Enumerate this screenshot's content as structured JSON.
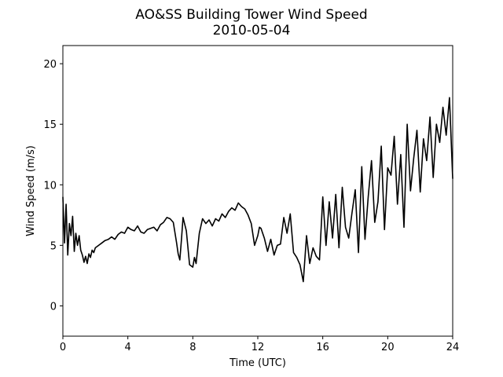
{
  "chart_data": {
    "type": "line",
    "title": "AO&SS Building Tower Wind Speed",
    "subtitle": "2010-05-04",
    "xlabel": "Time (UTC)",
    "ylabel": "Wind Speed (m/s)",
    "xlim": [
      0,
      24
    ],
    "ylim": [
      -2.5,
      21.5
    ],
    "xticks": [
      0,
      4,
      8,
      12,
      16,
      20,
      24
    ],
    "yticks": [
      0,
      5,
      10,
      15,
      20
    ],
    "grid": false,
    "line_color": "#000000",
    "series": [
      {
        "x": [
          0.0,
          0.1,
          0.2,
          0.3,
          0.4,
          0.5,
          0.6,
          0.7,
          0.8,
          0.9,
          1.0,
          1.1,
          1.2,
          1.3,
          1.4,
          1.5,
          1.6,
          1.7,
          1.8,
          1.9,
          2.0,
          2.2,
          2.4,
          2.6,
          2.8,
          3.0,
          3.2,
          3.4,
          3.6,
          3.8,
          4.0,
          4.2,
          4.4,
          4.6,
          4.8,
          5.0,
          5.2,
          5.4,
          5.6,
          5.8,
          6.0,
          6.2,
          6.4,
          6.6,
          6.8,
          7.0,
          7.1,
          7.2,
          7.3,
          7.4,
          7.6,
          7.8,
          8.0,
          8.1,
          8.2,
          8.4,
          8.6,
          8.8,
          9.0,
          9.2,
          9.4,
          9.6,
          9.8,
          10.0,
          10.2,
          10.4,
          10.6,
          10.8,
          11.0,
          11.2,
          11.4,
          11.6,
          11.8,
          12.0,
          12.1,
          12.2,
          12.4,
          12.6,
          12.8,
          13.0,
          13.2,
          13.4,
          13.6,
          13.8,
          14.0,
          14.2,
          14.4,
          14.6,
          14.8,
          15.0,
          15.2,
          15.4,
          15.6,
          15.8,
          16.0,
          16.2,
          16.4,
          16.6,
          16.8,
          17.0,
          17.2,
          17.4,
          17.6,
          17.8,
          18.0,
          18.2,
          18.4,
          18.6,
          18.8,
          19.0,
          19.2,
          19.4,
          19.6,
          19.8,
          20.0,
          20.2,
          20.4,
          20.6,
          20.8,
          21.0,
          21.2,
          21.4,
          21.6,
          21.8,
          22.0,
          22.2,
          22.4,
          22.6,
          22.8,
          23.0,
          23.2,
          23.4,
          23.6,
          23.8,
          24.0
        ],
        "y": [
          9.0,
          5.2,
          8.4,
          4.2,
          6.8,
          5.8,
          7.4,
          4.5,
          6.0,
          5.0,
          5.8,
          4.6,
          4.2,
          3.6,
          4.1,
          3.5,
          4.3,
          4.0,
          4.6,
          4.4,
          4.8,
          5.0,
          5.2,
          5.4,
          5.5,
          5.7,
          5.5,
          5.9,
          6.1,
          6.0,
          6.5,
          6.3,
          6.2,
          6.6,
          6.1,
          6.0,
          6.3,
          6.4,
          6.5,
          6.2,
          6.7,
          6.9,
          7.3,
          7.2,
          6.9,
          5.2,
          4.3,
          3.8,
          5.5,
          7.3,
          6.2,
          3.4,
          3.2,
          4.0,
          3.5,
          6.0,
          7.2,
          6.8,
          7.1,
          6.6,
          7.2,
          7.0,
          7.6,
          7.3,
          7.8,
          8.1,
          7.9,
          8.5,
          8.2,
          8.0,
          7.5,
          6.8,
          5.0,
          5.8,
          6.5,
          6.4,
          5.6,
          4.5,
          5.5,
          4.2,
          5.0,
          5.1,
          7.3,
          6.0,
          7.6,
          4.4,
          4.0,
          3.4,
          2.0,
          5.8,
          3.5,
          4.8,
          4.1,
          3.8,
          9.0,
          5.0,
          8.6,
          5.6,
          9.2,
          4.8,
          9.8,
          6.5,
          5.6,
          7.7,
          9.6,
          4.4,
          11.5,
          5.5,
          9.0,
          12.0,
          6.9,
          8.6,
          13.2,
          6.3,
          11.4,
          10.8,
          14.0,
          8.4,
          12.5,
          6.5,
          15.0,
          9.5,
          12.2,
          14.5,
          9.4,
          13.8,
          12.0,
          15.6,
          10.6,
          15.0,
          13.5,
          16.4,
          14.1,
          17.2,
          10.5
        ]
      }
    ]
  }
}
